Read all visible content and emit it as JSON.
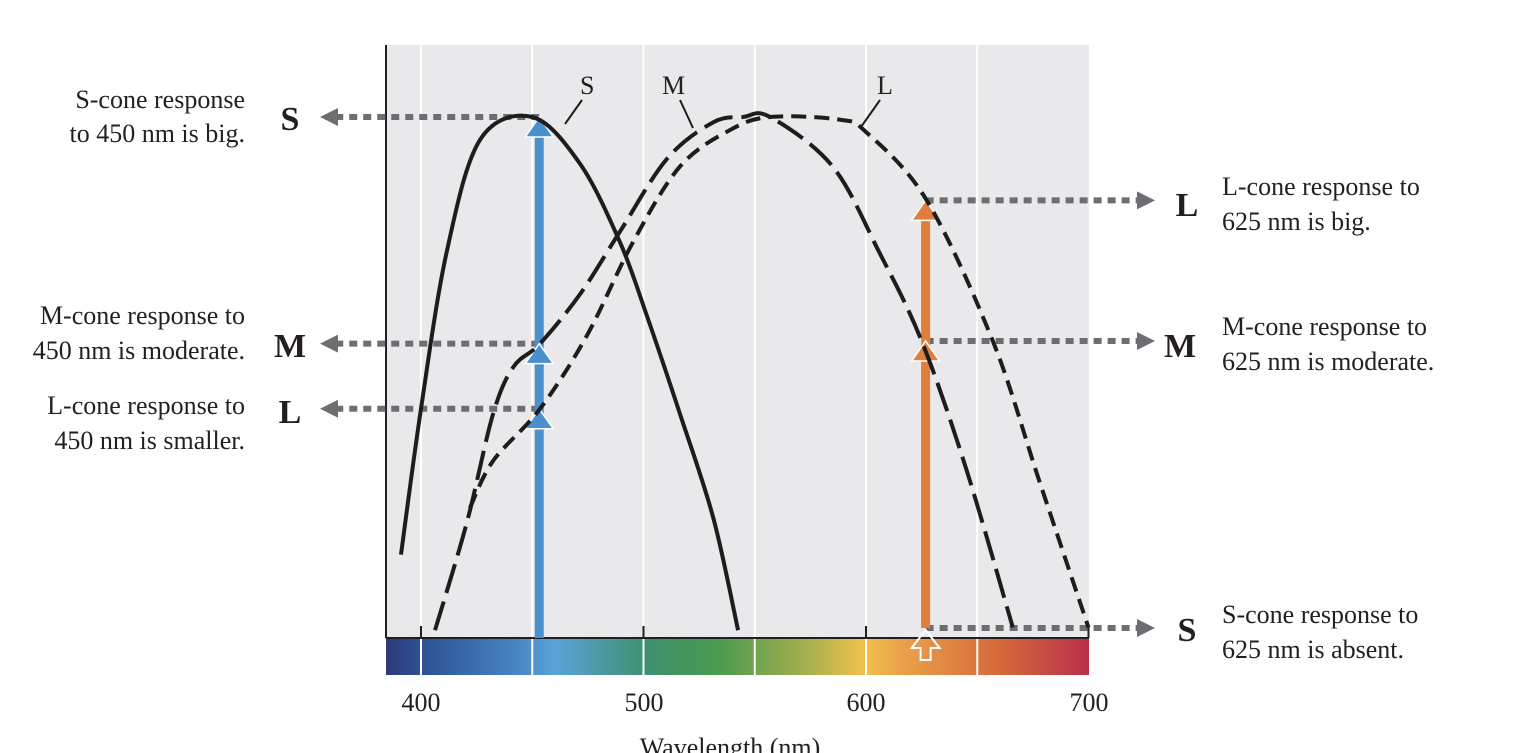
{
  "chart_data": {
    "type": "line",
    "xlabel": "Wavelength (nm)",
    "ylabel": "",
    "xlim": [
      384,
      700
    ],
    "ylim": [
      0,
      1
    ],
    "x_ticks": [
      "400",
      "500",
      "600",
      "700"
    ],
    "grid": true,
    "series": [
      {
        "name": "S",
        "style": "solid",
        "x": [
          391,
          400,
          411.5,
          426.5,
          450,
          471.5,
          489.4,
          501.4,
          516.4,
          531.4,
          542.5
        ],
        "y": [
          0.16,
          0.44,
          0.74,
          0.956,
          1.0,
          0.91,
          0.76,
          0.62,
          0.43,
          0.23,
          0.015
        ]
      },
      {
        "name": "M",
        "style": "long-dash",
        "x": [
          406.3,
          420.5,
          432.4,
          441.5,
          453.5,
          471.5,
          489.4,
          510.6,
          531.4,
          544.7,
          556.9,
          585,
          606,
          625,
          645,
          666
        ],
        "y": [
          0.015,
          0.22,
          0.43,
          0.52,
          0.565,
          0.66,
          0.78,
          0.92,
          0.99,
          1.0,
          1.0,
          0.905,
          0.74,
          0.57,
          0.325,
          0.02
        ]
      },
      {
        "name": "L",
        "style": "short-dash",
        "x": [
          422,
          432.4,
          453.5,
          474.5,
          495.3,
          516.4,
          538.9,
          557,
          588,
          600.3,
          627.3,
          657,
          678,
          700
        ],
        "y": [
          0.25,
          0.34,
          0.44,
          0.58,
          0.76,
          0.905,
          0.975,
          1.0,
          0.995,
          0.97,
          0.84,
          0.57,
          0.3,
          0.02
        ]
      }
    ],
    "stimuli": [
      {
        "wavelength": 450,
        "color": "#4a90cc",
        "responses": {
          "S": 1.0,
          "M": 0.565,
          "L": 0.44
        }
      },
      {
        "wavelength": 625,
        "color": "#e07f3c",
        "responses": {
          "L": 0.84,
          "M": 0.57,
          "S": 0.0
        }
      }
    ],
    "spectrum_colors": [
      "#2e3a7a",
      "#2c5597",
      "#4a86c5",
      "#5aa3da",
      "#3e9070",
      "#4a9a50",
      "#a6b04e",
      "#f0c24a",
      "#eba24a",
      "#d66a3c",
      "#b8304a"
    ],
    "colors": {
      "plot_bg": "#e9e9eb",
      "curve": "#1d1d1d",
      "dotted": "#6d6e71"
    }
  },
  "annotations": {
    "left": [
      {
        "letter": "S",
        "line1": "S-cone response",
        "line2": "to 450 nm is big."
      },
      {
        "letter": "M",
        "line1": "M-cone response to",
        "line2": "450 nm is moderate."
      },
      {
        "letter": "L",
        "line1": "L-cone response to",
        "line2": "450 nm is smaller."
      }
    ],
    "right": [
      {
        "letter": "L",
        "line1": "L-cone response to",
        "line2": "625 nm is big."
      },
      {
        "letter": "M",
        "line1": "M-cone response to",
        "line2": "625 nm is moderate."
      },
      {
        "letter": "S",
        "line1": "S-cone response to",
        "line2": "625 nm is absent."
      }
    ]
  }
}
